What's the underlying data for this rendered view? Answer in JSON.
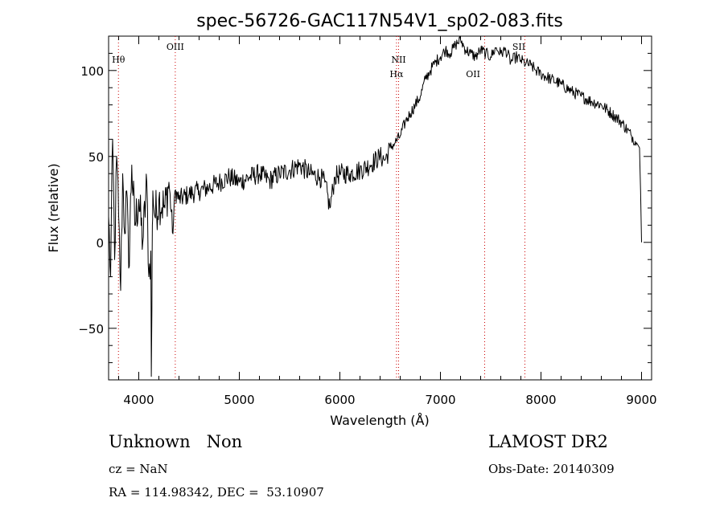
{
  "chart_data": {
    "type": "line",
    "title": "spec-56726-GAC117N54V1_sp02-083.fits",
    "xlabel": "Wavelength (Å)",
    "ylabel": "Flux (relative)",
    "xlim": [
      3700,
      9100
    ],
    "ylim": [
      -80,
      120
    ],
    "xticks": [
      4000,
      5000,
      6000,
      7000,
      8000,
      9000
    ],
    "yticks": [
      -50,
      0,
      50,
      100
    ],
    "grid": false,
    "series_color": "#000000",
    "line_marker_color": "#cc0000",
    "spectrum": {
      "x": [
        3700,
        3720,
        3740,
        3760,
        3780,
        3800,
        3820,
        3840,
        3860,
        3880,
        3900,
        3930,
        3960,
        4000,
        4040,
        4080,
        4100,
        4120,
        4125,
        4130,
        4135,
        4140,
        4160,
        4200,
        4260,
        4300,
        4340,
        4360,
        4400,
        4500,
        4600,
        4700,
        4800,
        4900,
        5000,
        5100,
        5200,
        5300,
        5400,
        5500,
        5600,
        5700,
        5800,
        5850,
        5900,
        5950,
        6000,
        6100,
        6200,
        6300,
        6400,
        6450,
        6500,
        6550,
        6600,
        6650,
        6700,
        6750,
        6800,
        6850,
        6900,
        6950,
        7000,
        7050,
        7100,
        7150,
        7200,
        7250,
        7300,
        7350,
        7400,
        7450,
        7500,
        7550,
        7600,
        7650,
        7700,
        7750,
        7800,
        7850,
        7900,
        7950,
        8000,
        8100,
        8200,
        8300,
        8400,
        8500,
        8600,
        8700,
        8800,
        8900,
        8950,
        8980,
        8990,
        9000
      ],
      "y": [
        15,
        -20,
        60,
        -10,
        50,
        15,
        -28,
        40,
        5,
        30,
        -15,
        45,
        10,
        25,
        0,
        35,
        -20,
        -5,
        -78,
        -40,
        10,
        30,
        15,
        25,
        20,
        35,
        5,
        30,
        25,
        28,
        30,
        32,
        35,
        38,
        35,
        38,
        40,
        36,
        40,
        42,
        45,
        40,
        38,
        35,
        20,
        38,
        40,
        40,
        42,
        45,
        50,
        48,
        55,
        58,
        62,
        70,
        75,
        80,
        85,
        95,
        100,
        105,
        108,
        112,
        110,
        115,
        118,
        112,
        110,
        108,
        112,
        110,
        108,
        113,
        110,
        112,
        105,
        108,
        106,
        104,
        103,
        100,
        98,
        95,
        92,
        88,
        85,
        82,
        80,
        75,
        70,
        62,
        58,
        55,
        30,
        0
      ],
      "label": ""
    },
    "emission_lines": [
      {
        "label": "Hθ",
        "x": 3798,
        "row": 1
      },
      {
        "label": "OIII",
        "x": 4363,
        "row": 0
      },
      {
        "label": "NII",
        "x": 6584,
        "row": 1
      },
      {
        "label": "Hα",
        "x": 6563,
        "row": 2
      },
      {
        "label": "OII",
        "x": 7325,
        "row": 2
      },
      {
        "label": "SII",
        "x": 7780,
        "row": 0
      }
    ],
    "marker_lines_x": [
      3798,
      4363,
      6563,
      6584,
      7440,
      7840
    ]
  },
  "footer": {
    "class": "Unknown",
    "subclass": "Non",
    "survey": "LAMOST DR2",
    "cz": "cz = NaN",
    "obs_date": "Obs-Date: 20140309",
    "radec": "RA = 114.98342, DEC =  53.10907"
  }
}
